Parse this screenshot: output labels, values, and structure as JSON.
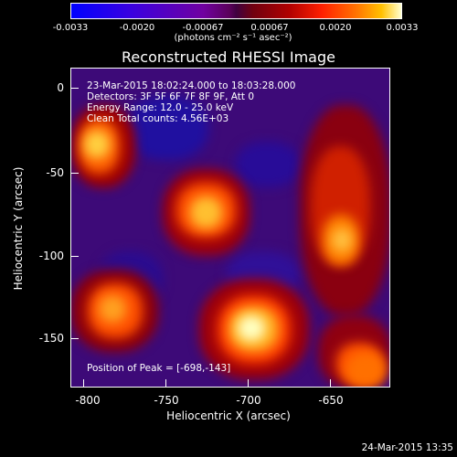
{
  "colorbar": {
    "ticks": [
      "-0.0033",
      "-0.0020",
      "-0.00067",
      "0.00067",
      "0.0020",
      "0.0033"
    ],
    "unit": "(photons cm⁻² s⁻¹ asec⁻²)"
  },
  "title": "Reconstructed RHESSI Image",
  "info": {
    "time": "23-Mar-2015 18:02:24.000 to 18:03:28.000",
    "detectors": "Detectors: 3F 5F 6F 7F 8F 9F, Att 0",
    "energy": "Energy Range: 12.0 - 25.0 keV",
    "clean": "Clean     Total counts: 4.56E+03",
    "peak": "Position of Peak = [-698,-143]"
  },
  "axes": {
    "xlabel": "Heliocentric X (arcsec)",
    "ylabel": "Heliocentric Y (arcsec)",
    "xticks": [
      "-800",
      "-750",
      "-700",
      "-650"
    ],
    "yticks": [
      "0",
      "-50",
      "-100",
      "-150"
    ]
  },
  "footer": "24-Mar-2015 13:35"
}
